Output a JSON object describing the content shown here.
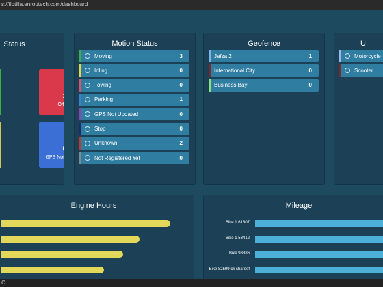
{
  "browser": {
    "url": "s://flotilla.enroutech.com/dashboard"
  },
  "status_panel": {
    "title": "Status",
    "tiles": [
      {
        "count": 2,
        "label": "Offline",
        "color": "#d9394b"
      },
      {
        "count": 0,
        "label": "GPS Not Updated",
        "color": "#3b6fd6"
      }
    ]
  },
  "motion_status": {
    "title": "Motion Status",
    "rows": [
      {
        "label": "Moving",
        "count": 3,
        "color": "#3cb043"
      },
      {
        "label": "Idling",
        "count": 0,
        "color": "#e6d84a"
      },
      {
        "label": "Towing",
        "count": 0,
        "color": "#e0506a"
      },
      {
        "label": "Parking",
        "count": 1,
        "color": "#3f7fd0"
      },
      {
        "label": "GPS Not Updated",
        "count": 0,
        "color": "#8e44ad"
      },
      {
        "label": "Stop",
        "count": 0,
        "color": "#1a2a6c"
      },
      {
        "label": "Unknown",
        "count": 2,
        "color": "#c0392b"
      },
      {
        "label": "Not Registered Yet",
        "count": 0,
        "color": "#7f8c8d"
      }
    ]
  },
  "geofence": {
    "title": "Geofence",
    "rows": [
      {
        "label": "Jafza 2",
        "count": 1,
        "color": "#7fb3e8"
      },
      {
        "label": "International City",
        "count": 0,
        "color": "#7a2a2a"
      },
      {
        "label": "Business Bay",
        "count": 0,
        "color": "#8ee07a"
      }
    ]
  },
  "vehicle_types": {
    "title": "U",
    "rows": [
      {
        "label": "Motorcycle",
        "color": "#9fb6e8"
      },
      {
        "label": "Scooter",
        "color": "#7a2a2a"
      }
    ]
  },
  "engine_hours": {
    "title": "Engine Hours",
    "values": [
      248,
      203,
      179,
      151
    ],
    "xlim": [
      0,
      283
    ],
    "color": "#e3d85a"
  },
  "mileage": {
    "title": "Mileage",
    "categories": [
      "Bike 1 61807",
      "Bike 1 53412",
      "Bike 93386",
      "Bike 82599 ck shareef"
    ],
    "values": [
      200,
      200,
      200,
      200
    ],
    "xlim": [
      0,
      188
    ],
    "color": "#4cb0d9"
  },
  "footer": {
    "text": "C"
  }
}
